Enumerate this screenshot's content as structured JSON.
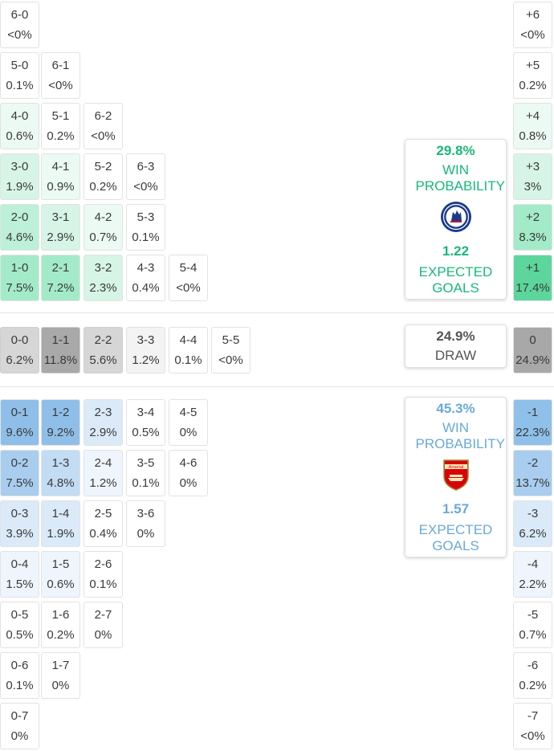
{
  "colors": {
    "home_accent": "#17b978",
    "away_accent": "#6aa9d8",
    "draw_text": "#555555",
    "home_scale": [
      "#ffffff",
      "#ebfaf3",
      "#d6f5e7",
      "#bdf0d8",
      "#a3ebc8",
      "#7de3b3"
    ],
    "away_scale": [
      "#ffffff",
      "#eef5fc",
      "#dbeaf8",
      "#c2dcf3",
      "#a8cdee",
      "#8fbfe9"
    ],
    "draw_scale": [
      "#ffffff",
      "#f3f3f3",
      "#e6e6e6",
      "#d6d6d6",
      "#bdbdbd",
      "#a9a9a9"
    ]
  },
  "home_wins": [
    {
      "score": "6-0",
      "pct": "<0%",
      "shade": 0
    },
    {
      "score": "5-0",
      "pct": "0.1%",
      "shade": 0
    },
    {
      "score": "6-1",
      "pct": "<0%",
      "shade": 0
    },
    {
      "score": "4-0",
      "pct": "0.6%",
      "shade": 1
    },
    {
      "score": "5-1",
      "pct": "0.2%",
      "shade": 0
    },
    {
      "score": "6-2",
      "pct": "<0%",
      "shade": 0
    },
    {
      "score": "3-0",
      "pct": "1.9%",
      "shade": 2
    },
    {
      "score": "4-1",
      "pct": "0.9%",
      "shade": 1
    },
    {
      "score": "5-2",
      "pct": "0.2%",
      "shade": 0
    },
    {
      "score": "6-3",
      "pct": "<0%",
      "shade": 0
    },
    {
      "score": "2-0",
      "pct": "4.6%",
      "shade": 3
    },
    {
      "score": "3-1",
      "pct": "2.9%",
      "shade": 2
    },
    {
      "score": "4-2",
      "pct": "0.7%",
      "shade": 1
    },
    {
      "score": "5-3",
      "pct": "0.1%",
      "shade": 0
    },
    {
      "score": "1-0",
      "pct": "7.5%",
      "shade": 4
    },
    {
      "score": "2-1",
      "pct": "7.2%",
      "shade": 4
    },
    {
      "score": "3-2",
      "pct": "2.3%",
      "shade": 2
    },
    {
      "score": "4-3",
      "pct": "0.4%",
      "shade": 0
    },
    {
      "score": "5-4",
      "pct": "<0%",
      "shade": 0
    }
  ],
  "draws": [
    {
      "score": "0-0",
      "pct": "6.2%",
      "shade": 3
    },
    {
      "score": "1-1",
      "pct": "11.8%",
      "shade": 5
    },
    {
      "score": "2-2",
      "pct": "5.6%",
      "shade": 3
    },
    {
      "score": "3-3",
      "pct": "1.2%",
      "shade": 1
    },
    {
      "score": "4-4",
      "pct": "0.1%",
      "shade": 0
    },
    {
      "score": "5-5",
      "pct": "<0%",
      "shade": 0
    }
  ],
  "away_wins": [
    {
      "score": "0-1",
      "pct": "9.6%",
      "shade": 5
    },
    {
      "score": "1-2",
      "pct": "9.2%",
      "shade": 5
    },
    {
      "score": "2-3",
      "pct": "2.9%",
      "shade": 2
    },
    {
      "score": "3-4",
      "pct": "0.5%",
      "shade": 0
    },
    {
      "score": "4-5",
      "pct": "0%",
      "shade": 0
    },
    {
      "score": "0-2",
      "pct": "7.5%",
      "shade": 4
    },
    {
      "score": "1-3",
      "pct": "4.8%",
      "shade": 3
    },
    {
      "score": "2-4",
      "pct": "1.2%",
      "shade": 1
    },
    {
      "score": "3-5",
      "pct": "0.1%",
      "shade": 0
    },
    {
      "score": "4-6",
      "pct": "0%",
      "shade": 0
    },
    {
      "score": "0-3",
      "pct": "3.9%",
      "shade": 2
    },
    {
      "score": "1-4",
      "pct": "1.9%",
      "shade": 2
    },
    {
      "score": "2-5",
      "pct": "0.4%",
      "shade": 0
    },
    {
      "score": "3-6",
      "pct": "0%",
      "shade": 0
    },
    {
      "score": "0-4",
      "pct": "1.5%",
      "shade": 1
    },
    {
      "score": "1-5",
      "pct": "0.6%",
      "shade": 1
    },
    {
      "score": "2-6",
      "pct": "0.1%",
      "shade": 0
    },
    {
      "score": "0-5",
      "pct": "0.5%",
      "shade": 0
    },
    {
      "score": "1-6",
      "pct": "0.2%",
      "shade": 0
    },
    {
      "score": "2-7",
      "pct": "0%",
      "shade": 0
    },
    {
      "score": "0-6",
      "pct": "0.1%",
      "shade": 0
    },
    {
      "score": "1-7",
      "pct": "0%",
      "shade": 0
    },
    {
      "score": "0-7",
      "pct": "0%",
      "shade": 0
    }
  ],
  "goal_diff": [
    {
      "label": "+6",
      "pct": "<0%",
      "shade": 0,
      "side": "home"
    },
    {
      "label": "+5",
      "pct": "0.2%",
      "shade": 0,
      "side": "home"
    },
    {
      "label": "+4",
      "pct": "0.8%",
      "shade": 1,
      "side": "home"
    },
    {
      "label": "+3",
      "pct": "3%",
      "shade": 2,
      "side": "home"
    },
    {
      "label": "+2",
      "pct": "8.3%",
      "shade": 4,
      "side": "home"
    },
    {
      "label": "+1",
      "pct": "17.4%",
      "shade": 5,
      "side": "home"
    },
    {
      "label": "0",
      "pct": "24.9%",
      "shade": 5,
      "side": "draw"
    },
    {
      "label": "-1",
      "pct": "22.3%",
      "shade": 5,
      "side": "away"
    },
    {
      "label": "-2",
      "pct": "13.7%",
      "shade": 4,
      "side": "away"
    },
    {
      "label": "-3",
      "pct": "6.2%",
      "shade": 2,
      "side": "away"
    },
    {
      "label": "-4",
      "pct": "2.2%",
      "shade": 1,
      "side": "away"
    },
    {
      "label": "-5",
      "pct": "0.7%",
      "shade": 0,
      "side": "away"
    },
    {
      "label": "-6",
      "pct": "0.2%",
      "shade": 0,
      "side": "away"
    },
    {
      "label": "-7",
      "pct": "<0%",
      "shade": 0,
      "side": "away"
    }
  ],
  "home_panel": {
    "win_pct": "29.8%",
    "win_label": "WIN PROBABILITY",
    "xg": "1.22",
    "xg_label": "EXPECTED GOALS",
    "crest_icon": "chelsea-crest-icon"
  },
  "draw_panel": {
    "pct": "24.9%",
    "label": "DRAW"
  },
  "away_panel": {
    "win_pct": "45.3%",
    "win_label": "WIN PROBABILITY",
    "xg": "1.57",
    "xg_label": "EXPECTED GOALS",
    "crest_icon": "arsenal-crest-icon",
    "crest_text": "Arsenal"
  }
}
